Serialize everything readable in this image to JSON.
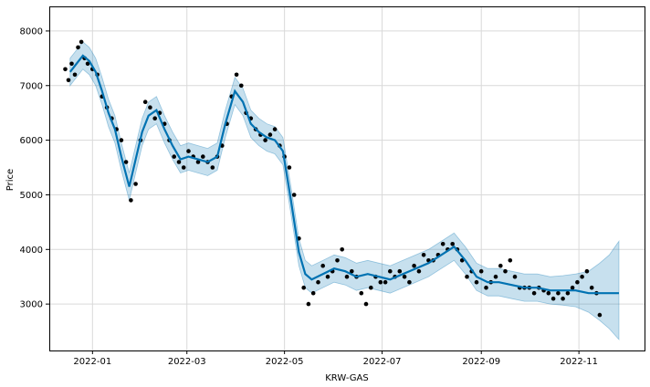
{
  "chart_data": {
    "type": "line",
    "subtype": "prophet-forecast",
    "title": "",
    "xlabel": "KRW-GAS",
    "ylabel": "Price",
    "x_range": [
      "2021-12-05",
      "2022-12-12"
    ],
    "ylim": [
      2150,
      8450
    ],
    "grid": true,
    "legend": "none",
    "x_ticks": [
      "2022-01",
      "2022-03",
      "2022-05",
      "2022-07",
      "2022-09",
      "2022-11"
    ],
    "x_tick_dates": [
      "2022-01-01",
      "2022-03-01",
      "2022-05-01",
      "2022-07-01",
      "2022-09-01",
      "2022-11-01"
    ],
    "y_ticks": [
      3000,
      4000,
      5000,
      6000,
      7000,
      8000
    ],
    "colors": {
      "forecast": "#0072B2",
      "band": "#0072B2",
      "observed": "#000000"
    },
    "series": [
      {
        "kind": "forecast",
        "x": [
          "2021-12-18",
          "2021-12-22",
          "2021-12-26",
          "2021-12-30",
          "2022-01-03",
          "2022-01-07",
          "2022-01-11",
          "2022-01-15",
          "2022-01-19",
          "2022-01-24",
          "2022-01-28",
          "2022-02-01",
          "2022-02-05",
          "2022-02-10",
          "2022-02-15",
          "2022-02-20",
          "2022-02-25",
          "2022-03-02",
          "2022-03-08",
          "2022-03-14",
          "2022-03-20",
          "2022-03-25",
          "2022-03-31",
          "2022-04-05",
          "2022-04-10",
          "2022-04-15",
          "2022-04-20",
          "2022-04-25",
          "2022-04-30",
          "2022-05-05",
          "2022-05-10",
          "2022-05-14",
          "2022-05-18",
          "2022-05-25",
          "2022-06-01",
          "2022-06-08",
          "2022-06-15",
          "2022-06-22",
          "2022-06-29",
          "2022-07-06",
          "2022-07-14",
          "2022-07-22",
          "2022-07-30",
          "2022-08-07",
          "2022-08-15",
          "2022-08-22",
          "2022-08-29",
          "2022-09-05",
          "2022-09-12",
          "2022-09-20",
          "2022-09-28",
          "2022-10-06",
          "2022-10-14",
          "2022-10-22",
          "2022-10-30",
          "2022-11-07",
          "2022-11-14",
          "2022-11-20",
          "2022-11-26"
        ],
        "yhat": [
          7250,
          7400,
          7550,
          7450,
          7250,
          6900,
          6500,
          6200,
          5700,
          5150,
          5650,
          6150,
          6450,
          6550,
          6200,
          5900,
          5650,
          5700,
          5650,
          5600,
          5700,
          6300,
          6900,
          6700,
          6300,
          6150,
          6050,
          6000,
          5800,
          4900,
          3950,
          3550,
          3450,
          3550,
          3650,
          3600,
          3500,
          3550,
          3500,
          3450,
          3550,
          3650,
          3750,
          3900,
          4050,
          3800,
          3500,
          3400,
          3400,
          3350,
          3300,
          3300,
          3250,
          3250,
          3250,
          3200,
          3200,
          3200,
          3200
        ],
        "lower": [
          7000,
          7150,
          7300,
          7200,
          7000,
          6650,
          6250,
          5950,
          5450,
          4900,
          5400,
          5900,
          6200,
          6300,
          5950,
          5650,
          5400,
          5450,
          5400,
          5350,
          5450,
          6050,
          6650,
          6450,
          6050,
          5900,
          5800,
          5750,
          5550,
          4650,
          3700,
          3300,
          3200,
          3300,
          3400,
          3350,
          3250,
          3300,
          3250,
          3200,
          3300,
          3400,
          3500,
          3650,
          3800,
          3550,
          3250,
          3150,
          3150,
          3100,
          3050,
          3050,
          3000,
          2980,
          2950,
          2850,
          2700,
          2550,
          2350
        ],
        "upper": [
          7500,
          7650,
          7800,
          7700,
          7500,
          7150,
          6750,
          6450,
          5950,
          5400,
          5900,
          6400,
          6700,
          6800,
          6450,
          6150,
          5900,
          5950,
          5900,
          5850,
          5950,
          6550,
          7150,
          6950,
          6550,
          6400,
          6300,
          6250,
          6050,
          5150,
          4200,
          3800,
          3700,
          3800,
          3900,
          3850,
          3750,
          3800,
          3750,
          3700,
          3800,
          3900,
          4000,
          4150,
          4300,
          4050,
          3750,
          3650,
          3650,
          3600,
          3550,
          3550,
          3500,
          3520,
          3550,
          3600,
          3750,
          3900,
          4150
        ]
      },
      {
        "kind": "observed",
        "x": [
          "2021-12-15",
          "2021-12-17",
          "2021-12-19",
          "2021-12-21",
          "2021-12-23",
          "2021-12-25",
          "2021-12-27",
          "2021-12-29",
          "2022-01-01",
          "2022-01-04",
          "2022-01-07",
          "2022-01-10",
          "2022-01-13",
          "2022-01-16",
          "2022-01-19",
          "2022-01-22",
          "2022-01-25",
          "2022-01-28",
          "2022-01-31",
          "2022-02-03",
          "2022-02-06",
          "2022-02-09",
          "2022-02-12",
          "2022-02-15",
          "2022-02-18",
          "2022-02-21",
          "2022-02-24",
          "2022-02-27",
          "2022-03-02",
          "2022-03-05",
          "2022-03-08",
          "2022-03-11",
          "2022-03-14",
          "2022-03-17",
          "2022-03-20",
          "2022-03-23",
          "2022-03-26",
          "2022-03-29",
          "2022-04-01",
          "2022-04-04",
          "2022-04-07",
          "2022-04-10",
          "2022-04-13",
          "2022-04-16",
          "2022-04-19",
          "2022-04-22",
          "2022-04-25",
          "2022-04-28",
          "2022-05-01",
          "2022-05-04",
          "2022-05-07",
          "2022-05-10",
          "2022-05-13",
          "2022-05-16",
          "2022-05-19",
          "2022-05-22",
          "2022-05-25",
          "2022-05-28",
          "2022-05-31",
          "2022-06-03",
          "2022-06-06",
          "2022-06-09",
          "2022-06-12",
          "2022-06-15",
          "2022-06-18",
          "2022-06-21",
          "2022-06-24",
          "2022-06-27",
          "2022-06-30",
          "2022-07-03",
          "2022-07-06",
          "2022-07-09",
          "2022-07-12",
          "2022-07-15",
          "2022-07-18",
          "2022-07-21",
          "2022-07-24",
          "2022-07-27",
          "2022-07-30",
          "2022-08-02",
          "2022-08-05",
          "2022-08-08",
          "2022-08-11",
          "2022-08-14",
          "2022-08-17",
          "2022-08-20",
          "2022-08-23",
          "2022-08-26",
          "2022-08-29",
          "2022-09-01",
          "2022-09-04",
          "2022-09-07",
          "2022-09-10",
          "2022-09-13",
          "2022-09-16",
          "2022-09-19",
          "2022-09-22",
          "2022-09-25",
          "2022-09-28",
          "2022-10-01",
          "2022-10-04",
          "2022-10-07",
          "2022-10-10",
          "2022-10-13",
          "2022-10-16",
          "2022-10-19",
          "2022-10-22",
          "2022-10-25",
          "2022-10-28",
          "2022-10-31",
          "2022-11-03",
          "2022-11-06",
          "2022-11-09",
          "2022-11-12",
          "2022-11-14"
        ],
        "y": [
          7300,
          7100,
          7400,
          7200,
          7700,
          7800,
          7500,
          7400,
          7300,
          7200,
          6800,
          6600,
          6400,
          6200,
          6000,
          5600,
          4900,
          5200,
          6000,
          6700,
          6600,
          6400,
          6500,
          6300,
          6000,
          5700,
          5600,
          5500,
          5800,
          5700,
          5600,
          5700,
          5600,
          5500,
          5700,
          5900,
          6300,
          6800,
          7200,
          7000,
          6500,
          6400,
          6200,
          6100,
          6000,
          6100,
          6200,
          5900,
          5700,
          5500,
          5000,
          4200,
          3300,
          3000,
          3200,
          3400,
          3700,
          3500,
          3600,
          3800,
          4000,
          3500,
          3600,
          3500,
          3200,
          3000,
          3300,
          3500,
          3400,
          3400,
          3600,
          3500,
          3600,
          3500,
          3400,
          3700,
          3600,
          3900,
          3800,
          3800,
          3900,
          4100,
          4000,
          4100,
          4000,
          3800,
          3500,
          3600,
          3400,
          3600,
          3300,
          3400,
          3500,
          3700,
          3600,
          3800,
          3500,
          3300,
          3300,
          3300,
          3200,
          3300,
          3250,
          3200,
          3100,
          3200,
          3100,
          3200,
          3300,
          3400,
          3500,
          3600,
          3300,
          3200,
          2800
        ]
      }
    ]
  }
}
